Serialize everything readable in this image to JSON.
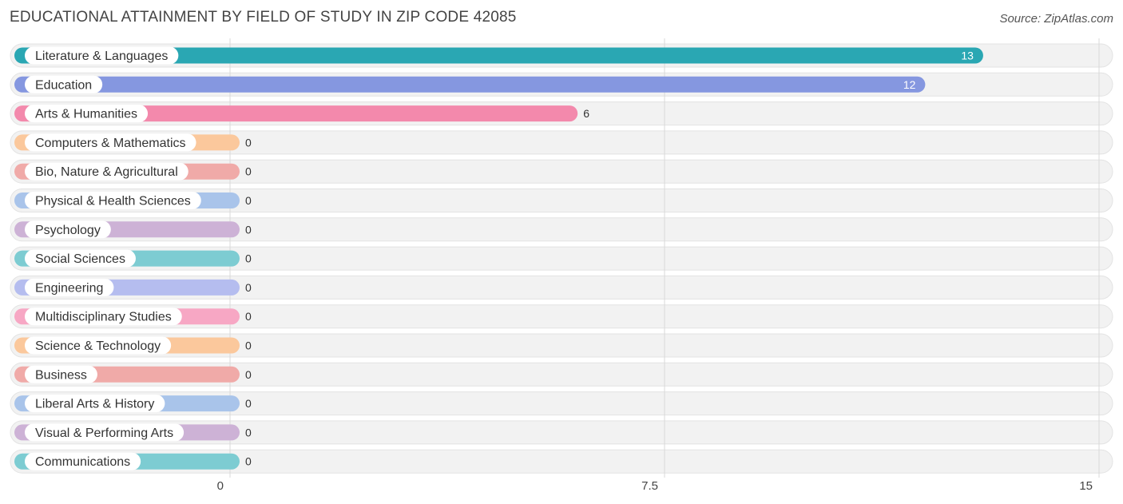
{
  "title": "EDUCATIONAL ATTAINMENT BY FIELD OF STUDY IN ZIP CODE 42085",
  "source": "Source: ZipAtlas.com",
  "chart_data": {
    "type": "bar",
    "orientation": "horizontal",
    "title": "EDUCATIONAL ATTAINMENT BY FIELD OF STUDY IN ZIP CODE 42085",
    "xlabel": "",
    "ylabel": "",
    "xlim": [
      0,
      15
    ],
    "x_ticks": [
      {
        "value": 0,
        "label": "0"
      },
      {
        "value": 7.5,
        "label": "7.5"
      },
      {
        "value": 15,
        "label": "15"
      }
    ],
    "grid": true,
    "categories": [
      "Literature & Languages",
      "Education",
      "Arts & Humanities",
      "Computers & Mathematics",
      "Bio, Nature & Agricultural",
      "Physical & Health Sciences",
      "Psychology",
      "Social Sciences",
      "Engineering",
      "Multidisciplinary Studies",
      "Science & Technology",
      "Business",
      "Liberal Arts & History",
      "Visual & Performing Arts",
      "Communications"
    ],
    "values": [
      13,
      12,
      6,
      0,
      0,
      0,
      0,
      0,
      0,
      0,
      0,
      0,
      0,
      0,
      0
    ],
    "value_labels": [
      "13",
      "12",
      "6",
      "0",
      "0",
      "0",
      "0",
      "0",
      "0",
      "0",
      "0",
      "0",
      "0",
      "0",
      "0"
    ],
    "colors": [
      "#2aa7b3",
      "#8597e0",
      "#f389ac",
      "#fbc89c",
      "#f0aaa8",
      "#a9c4ea",
      "#cdb2d6",
      "#7dccd2",
      "#b5bdef",
      "#f7a7c4",
      "#fbc89c",
      "#f0aaa8",
      "#a9c4ea",
      "#cdb2d6",
      "#7dccd2"
    ]
  }
}
